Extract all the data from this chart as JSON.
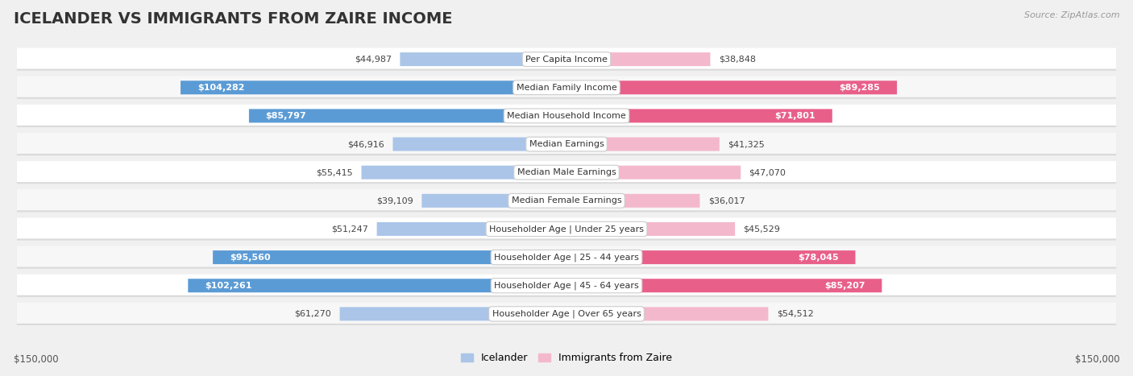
{
  "title": "ICELANDER VS IMMIGRANTS FROM ZAIRE INCOME",
  "source": "Source: ZipAtlas.com",
  "categories": [
    "Per Capita Income",
    "Median Family Income",
    "Median Household Income",
    "Median Earnings",
    "Median Male Earnings",
    "Median Female Earnings",
    "Householder Age | Under 25 years",
    "Householder Age | 25 - 44 years",
    "Householder Age | 45 - 64 years",
    "Householder Age | Over 65 years"
  ],
  "icelander_values": [
    44987,
    104282,
    85797,
    46916,
    55415,
    39109,
    51247,
    95560,
    102261,
    61270
  ],
  "zaire_values": [
    38848,
    89285,
    71801,
    41325,
    47070,
    36017,
    45529,
    78045,
    85207,
    54512
  ],
  "icelander_labels": [
    "$44,987",
    "$104,282",
    "$85,797",
    "$46,916",
    "$55,415",
    "$39,109",
    "$51,247",
    "$95,560",
    "$102,261",
    "$61,270"
  ],
  "zaire_labels": [
    "$38,848",
    "$89,285",
    "$71,801",
    "$41,325",
    "$47,070",
    "$36,017",
    "$45,529",
    "$78,045",
    "$85,207",
    "$54,512"
  ],
  "max_value": 150000,
  "icelander_color_light": "#aac5e8",
  "icelander_color_dark": "#5b9bd5",
  "zaire_color_light": "#f4b8cc",
  "zaire_color_dark": "#e8608a",
  "threshold_dark": 70000,
  "bg_color": "#f0f0f0",
  "row_bg_even": "#ffffff",
  "row_bg_odd": "#f7f7f7",
  "xlabel_left": "$150,000",
  "xlabel_right": "$150,000",
  "legend_icelander": "Icelander",
  "legend_zaire": "Immigrants from Zaire",
  "title_fontsize": 14,
  "label_fontsize": 8,
  "category_fontsize": 8
}
